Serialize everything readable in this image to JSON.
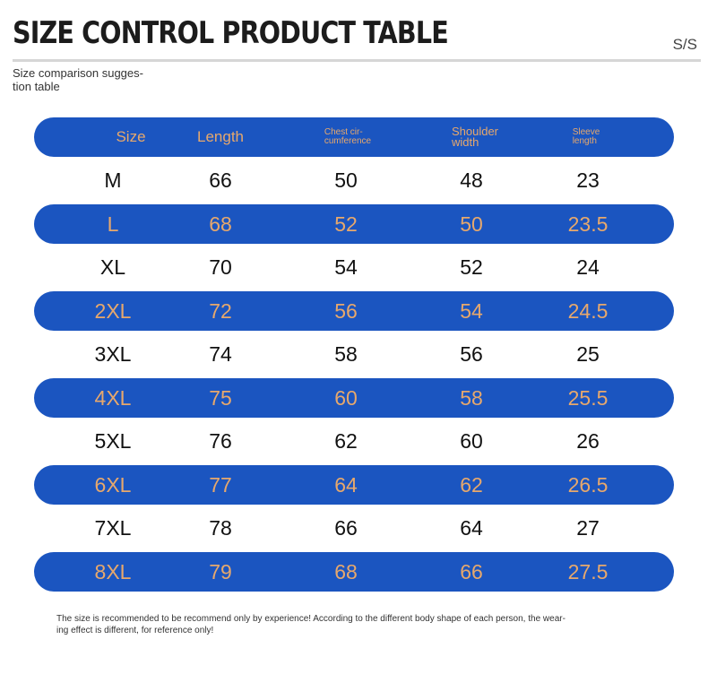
{
  "header": {
    "title": "SIZE CONTROL PRODUCT TABLE",
    "code": "S/S",
    "subtitle": "Size comparison sugges-\ntion table"
  },
  "table": {
    "columns": [
      "Size",
      "Length",
      "Chest cir-\ncumference",
      "Shoulder\nwidth",
      "Sleeve\nlength"
    ],
    "rows": [
      [
        "M",
        "66",
        "50",
        "48",
        "23"
      ],
      [
        "L",
        "68",
        "52",
        "50",
        "23.5"
      ],
      [
        "XL",
        "70",
        "54",
        "52",
        "24"
      ],
      [
        "2XL",
        "72",
        "56",
        "54",
        "24.5"
      ],
      [
        "3XL",
        "74",
        "58",
        "56",
        "25"
      ],
      [
        "4XL",
        "75",
        "60",
        "58",
        "25.5"
      ],
      [
        "5XL",
        "76",
        "62",
        "60",
        "26"
      ],
      [
        "6XL",
        "77",
        "64",
        "62",
        "26.5"
      ],
      [
        "7XL",
        "78",
        "66",
        "64",
        "27"
      ],
      [
        "8XL",
        "79",
        "68",
        "66",
        "27.5"
      ]
    ]
  },
  "footer": {
    "note": "The size is recommended to be recommend only by experience! According to the different body shape of each person, the wear-\ning effect is different, for reference only!"
  },
  "colors": {
    "bar_blue": "#1b55c0",
    "bar_text": "#e7a86c"
  }
}
